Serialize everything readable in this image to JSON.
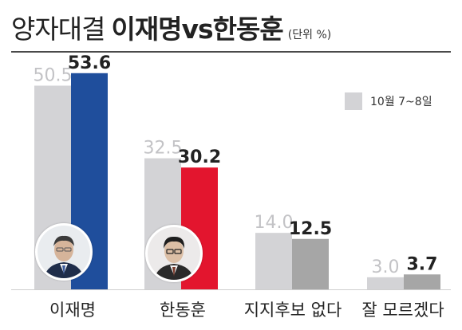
{
  "title": {
    "lead": "양자대결",
    "bold": "이재명vs한동훈",
    "unit": "(단위 %)"
  },
  "legend": {
    "label": "10월 7~8일",
    "swatch_color": "#d3d3d6"
  },
  "chart_data": {
    "type": "bar",
    "categories": [
      "이재명",
      "한동훈",
      "지지후보 없다",
      "잘 모르겠다"
    ],
    "series": [
      {
        "values": [
          50.5,
          32.5,
          14.0,
          3.0
        ],
        "labels": [
          "50.5",
          "32.5",
          "14.0",
          "3.0"
        ]
      },
      {
        "name": "10월 7~8일",
        "values": [
          53.6,
          30.2,
          12.5,
          3.7
        ],
        "labels": [
          "53.6",
          "30.2",
          "12.5",
          "3.7"
        ]
      }
    ],
    "ylim": [
      0,
      60
    ],
    "colors": {
      "previous": "#d3d3d6",
      "current": [
        "#1f4e9c",
        "#e3152e",
        "#a6a6a6",
        "#a6a6a6"
      ],
      "previous_label": "#c3c3c6",
      "current_label": "#222222"
    }
  }
}
